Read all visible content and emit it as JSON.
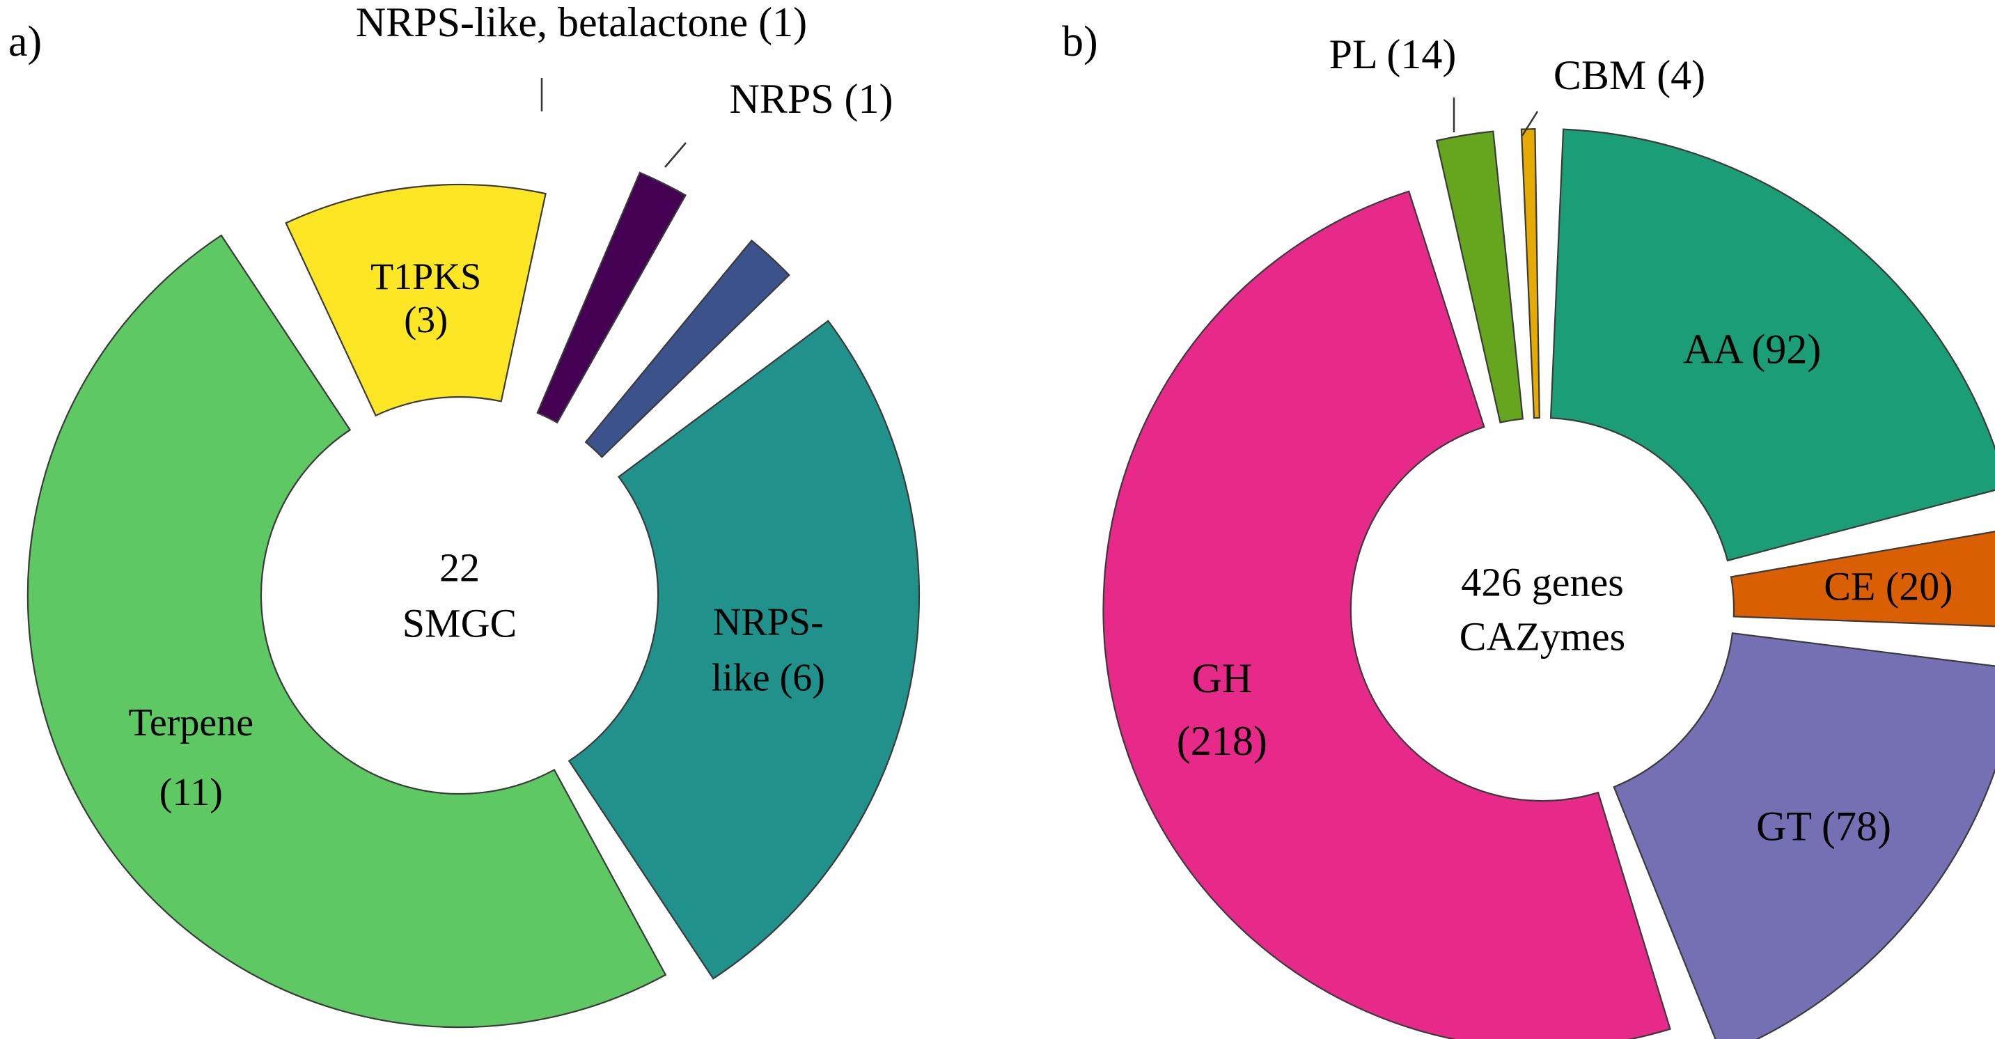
{
  "chart_data": [
    {
      "type": "donut",
      "panel_label": "a)",
      "center_text": [
        "22",
        "SMGC"
      ],
      "unit": "SMGC",
      "total": 22,
      "segments": [
        {
          "name": "T1PKS",
          "value": 3,
          "label": [
            "T1PKS",
            "(3)"
          ],
          "color": "#fde725"
        },
        {
          "name": "NRPS-like, betalactone",
          "value": 1,
          "label": [
            "NRPS-like, betalactone (1)"
          ],
          "color": "#440154"
        },
        {
          "name": "NRPS",
          "value": 1,
          "label": [
            "NRPS (1)"
          ],
          "color": "#3b528b"
        },
        {
          "name": "NRPS-like",
          "value": 6,
          "label": [
            "NRPS-",
            "like (6)"
          ],
          "color": "#21918c"
        },
        {
          "name": "Terpene",
          "value": 11,
          "label": [
            "Terpene",
            "(11)"
          ],
          "color": "#5ec962"
        }
      ]
    },
    {
      "type": "donut",
      "panel_label": "b)",
      "center_text": [
        "426 genes",
        "CAZymes"
      ],
      "unit": "genes",
      "total": 426,
      "segments": [
        {
          "name": "AA",
          "value": 92,
          "label": [
            "AA (92)"
          ],
          "color": "#1b9e77"
        },
        {
          "name": "CE",
          "value": 20,
          "label": [
            "CE (20)"
          ],
          "color": "#d95f02"
        },
        {
          "name": "GT",
          "value": 78,
          "label": [
            "GT (78)"
          ],
          "color": "#7570b3"
        },
        {
          "name": "GH",
          "value": 218,
          "label": [
            "GH",
            "(218)"
          ],
          "color": "#e7298a"
        },
        {
          "name": "PL",
          "value": 14,
          "label": [
            "PL (14)"
          ],
          "color": "#66a61e"
        },
        {
          "name": "CBM",
          "value": 4,
          "label": [
            "CBM (4)"
          ],
          "color": "#e6ab02"
        }
      ]
    }
  ]
}
